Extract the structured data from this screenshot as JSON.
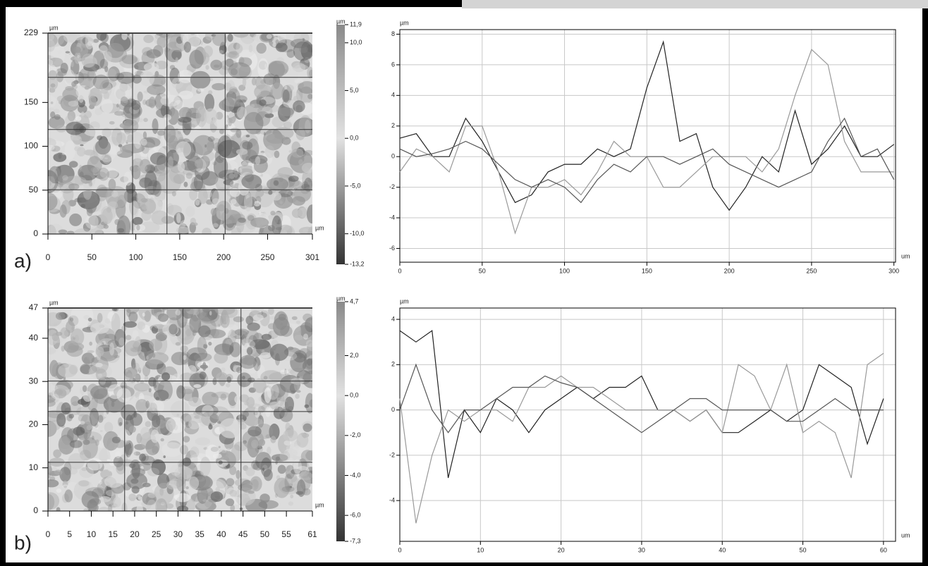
{
  "chart_data": [
    {
      "type": "heatmap",
      "label": "a)",
      "x_label": "µm",
      "y_label": "µm",
      "xlim": [
        0,
        301
      ],
      "xticks": [
        0,
        50,
        100,
        150,
        200,
        250,
        301
      ],
      "ylim": [
        0,
        229
      ],
      "yticks": [
        0,
        50,
        100,
        150,
        229
      ],
      "colorbar_label": "µm",
      "clim": [
        -13.2,
        11.9
      ],
      "cticks": [
        {
          "value": 11.9,
          "label": "11,9"
        },
        {
          "value": 10,
          "label": "10,0"
        },
        {
          "value": 5,
          "label": "5,0"
        },
        {
          "value": 0,
          "label": "0,0"
        },
        {
          "value": -5,
          "label": "-5,0"
        },
        {
          "value": -10,
          "label": "-10,0"
        },
        {
          "value": -13.2,
          "label": "-13,2"
        }
      ]
    },
    {
      "type": "line",
      "x_label": "um",
      "y_label": "µm",
      "grid": true,
      "xlim": [
        0,
        301
      ],
      "xticks": [
        0,
        50,
        100,
        150,
        200,
        250,
        300
      ],
      "ylim": [
        -6.9,
        8.3
      ],
      "yticks": [
        -6,
        -4,
        -2,
        0,
        2,
        4,
        6,
        8
      ],
      "x": [
        0,
        10,
        20,
        30,
        40,
        50,
        60,
        70,
        80,
        90,
        100,
        110,
        120,
        130,
        140,
        150,
        160,
        170,
        180,
        190,
        200,
        210,
        220,
        230,
        240,
        250,
        260,
        270,
        280,
        290,
        300
      ],
      "series": [
        {
          "color": "#222222",
          "values": [
            1.2,
            1.5,
            0,
            0,
            2.5,
            1,
            -1,
            -3,
            -2.5,
            -1,
            -0.5,
            -0.5,
            0.5,
            0,
            0.5,
            4.5,
            7.5,
            1,
            1.5,
            -2,
            -3.5,
            -2,
            0,
            -1,
            3,
            -0.5,
            0.5,
            2,
            0,
            0,
            0.8
          ]
        },
        {
          "color": "#999999",
          "values": [
            -1,
            0.5,
            0,
            -1,
            2,
            2,
            -1,
            -5,
            -2,
            -2,
            -1.5,
            -2.5,
            -1,
            1,
            0,
            0,
            -2,
            -2,
            -1,
            0,
            0,
            0,
            -1,
            0.5,
            4,
            7,
            6,
            1,
            -1,
            -1,
            -1
          ]
        },
        {
          "color": "#555555",
          "values": [
            0.5,
            0,
            0.2,
            0.5,
            1,
            0.5,
            -0.5,
            -1.5,
            -2,
            -1.5,
            -2,
            -3,
            -1.5,
            -0.5,
            -1,
            0,
            0,
            -0.5,
            0,
            0.5,
            -0.5,
            -1,
            -1.5,
            -2,
            -1.5,
            -1,
            1,
            2.5,
            0,
            0.5,
            -1.5
          ]
        }
      ]
    },
    {
      "type": "heatmap",
      "label": "b)",
      "x_label": "µm",
      "y_label": "µm",
      "xlim": [
        0,
        61
      ],
      "xticks": [
        0,
        5,
        10,
        15,
        20,
        25,
        30,
        35,
        40,
        45,
        50,
        55,
        61
      ],
      "ylim": [
        0,
        47
      ],
      "yticks": [
        0,
        10,
        20,
        30,
        40,
        47
      ],
      "colorbar_label": "µm",
      "clim": [
        -7.3,
        4.7
      ],
      "cticks": [
        {
          "value": 4.7,
          "label": "4,7"
        },
        {
          "value": 2,
          "label": "2,0"
        },
        {
          "value": 0,
          "label": "0,0"
        },
        {
          "value": -2,
          "label": "-2,0"
        },
        {
          "value": -4,
          "label": "-4,0"
        },
        {
          "value": -6,
          "label": "-6,0"
        },
        {
          "value": -7.3,
          "label": "-7,3"
        }
      ]
    },
    {
      "type": "line",
      "x_label": "um",
      "y_label": "µm",
      "grid": true,
      "xlim": [
        0,
        61.5
      ],
      "xticks": [
        0,
        10,
        20,
        30,
        40,
        50,
        60
      ],
      "ylim": [
        -5.8,
        4.5
      ],
      "yticks": [
        -4,
        -2,
        0,
        2,
        4
      ],
      "x": [
        0,
        2,
        4,
        6,
        8,
        10,
        12,
        14,
        16,
        18,
        20,
        22,
        24,
        26,
        28,
        30,
        32,
        34,
        36,
        38,
        40,
        42,
        44,
        46,
        48,
        50,
        52,
        54,
        56,
        58,
        60
      ],
      "series": [
        {
          "color": "#222222",
          "values": [
            3.5,
            3,
            3.5,
            -3,
            0,
            -1,
            0.5,
            0,
            -1,
            0,
            0.5,
            1,
            0.5,
            1,
            1,
            1.5,
            0,
            0,
            -0.5,
            0,
            -1,
            -1,
            -0.5,
            0,
            -0.5,
            0,
            2,
            1.5,
            1,
            -1.5,
            0.5
          ]
        },
        {
          "color": "#999999",
          "values": [
            0.5,
            -5,
            -2,
            0,
            -0.5,
            0,
            0,
            -0.5,
            1,
            1,
            1.5,
            1,
            1,
            0.5,
            0,
            0,
            0,
            0,
            -0.5,
            0,
            -1,
            2,
            1.5,
            0,
            2,
            -1,
            -0.5,
            -1,
            -3,
            2,
            2.5
          ]
        },
        {
          "color": "#555555",
          "values": [
            0,
            2,
            0,
            -1,
            0,
            0,
            0.5,
            1,
            1,
            1.5,
            1.2,
            1,
            0.5,
            0,
            -0.5,
            -1,
            -0.5,
            0,
            0.5,
            0.5,
            0,
            0,
            0,
            0,
            -0.5,
            -0.5,
            0,
            0.5,
            0,
            0,
            0
          ]
        }
      ]
    }
  ]
}
